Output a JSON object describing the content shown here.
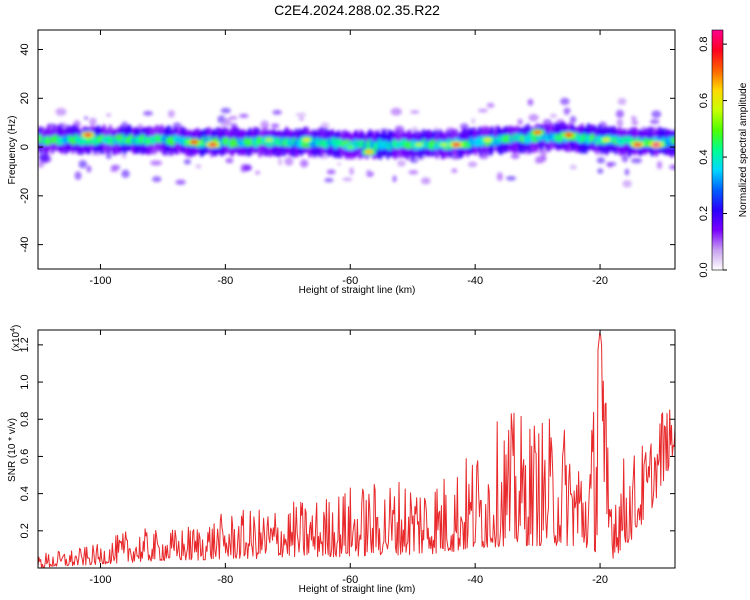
{
  "title": "C2E4.2024.288.02.35.R22",
  "chart_data": [
    {
      "type": "heatmap",
      "xlabel": "Height of straight line (km)",
      "ylabel": "Frequency (Hz)",
      "xlim": [
        -110,
        -8
      ],
      "ylim": [
        -50,
        48
      ],
      "xticks": [
        -100,
        -80,
        -60,
        -40,
        -20
      ],
      "xtick_labels": [
        "-100",
        "-80",
        "-60",
        "-40",
        "-20"
      ],
      "yticks": [
        -40,
        -20,
        0,
        20,
        40
      ],
      "ytick_labels": [
        "-40",
        "-20",
        "0",
        "20",
        "40"
      ],
      "band_center_hz": [
        [
          -110,
          3
        ],
        [
          -105,
          3
        ],
        [
          -100,
          3
        ],
        [
          -95,
          3
        ],
        [
          -90,
          3
        ],
        [
          -85,
          2
        ],
        [
          -80,
          2
        ],
        [
          -75,
          2
        ],
        [
          -70,
          2
        ],
        [
          -65,
          2
        ],
        [
          -60,
          1
        ],
        [
          -55,
          1
        ],
        [
          -50,
          1
        ],
        [
          -45,
          1
        ],
        [
          -40,
          2
        ],
        [
          -35,
          3
        ],
        [
          -30,
          4
        ],
        [
          -25,
          4
        ],
        [
          -20,
          3
        ],
        [
          -15,
          2
        ],
        [
          -10,
          2
        ],
        [
          -8,
          2
        ]
      ],
      "band_halfwidth_hz": 3,
      "peak_points": [
        {
          "x": -102,
          "y": 5,
          "amp": 0.8
        },
        {
          "x": -85,
          "y": 2,
          "amp": 0.75
        },
        {
          "x": -82,
          "y": 1,
          "amp": 0.8
        },
        {
          "x": -73,
          "y": 3,
          "amp": 0.55
        },
        {
          "x": -67,
          "y": 3,
          "amp": 0.6
        },
        {
          "x": -60,
          "y": 0,
          "amp": 0.5
        },
        {
          "x": -57,
          "y": -2,
          "amp": 0.65
        },
        {
          "x": -49,
          "y": 1,
          "amp": 0.55
        },
        {
          "x": -45,
          "y": 1,
          "amp": 0.55
        },
        {
          "x": -43,
          "y": 1,
          "amp": 0.8
        },
        {
          "x": -38,
          "y": 3,
          "amp": 0.6
        },
        {
          "x": -30,
          "y": 6,
          "amp": 0.7
        },
        {
          "x": -25,
          "y": 5,
          "amp": 0.75
        },
        {
          "x": -19,
          "y": 3,
          "amp": 0.6
        },
        {
          "x": -14,
          "y": 1,
          "amp": 0.8
        },
        {
          "x": -11,
          "y": 1,
          "amp": 0.85
        }
      ],
      "colorbar": {
        "label": "Normalized spectral amplitude",
        "range": [
          0.0,
          0.85
        ],
        "ticks": [
          0.0,
          0.2,
          0.4,
          0.6,
          0.8
        ],
        "tick_labels": [
          "0.0",
          "0.2",
          "0.4",
          "0.6",
          "0.8"
        ],
        "colors": [
          "#ffffff",
          "#c8a0f0",
          "#7a00ff",
          "#2a00ff",
          "#0060ff",
          "#00d8ff",
          "#00ff90",
          "#50ff00",
          "#c8ff00",
          "#ffd800",
          "#ff6000",
          "#ff0020",
          "#ff0090"
        ]
      }
    },
    {
      "type": "line",
      "xlabel": "Height of straight line (km)",
      "ylabel": "SNR (10 * v/v)",
      "multiplier_label": "(x10",
      "multiplier_exponent": "4",
      "multiplier_suffix": ")",
      "xlim": [
        -110,
        -8
      ],
      "ylim": [
        0,
        1.28
      ],
      "xticks": [
        -100,
        -80,
        -60,
        -40,
        -20
      ],
      "xtick_labels": [
        "-100",
        "-80",
        "-60",
        "-40",
        "-20"
      ],
      "yticks": [
        0.2,
        0.4,
        0.6,
        0.8,
        1.0,
        1.2
      ],
      "ytick_labels": [
        "0.2",
        "0.4",
        "0.6",
        "0.8",
        "1.0",
        "1.2"
      ],
      "color": "#e8282a",
      "series": [
        {
          "name": "SNR",
          "envelope_x": [
            -110,
            -105,
            -100,
            -95,
            -90,
            -85,
            -80,
            -75,
            -70,
            -65,
            -60,
            -55,
            -50,
            -45,
            -40,
            -35,
            -30,
            -25,
            -22,
            -20,
            -18,
            -15,
            -12,
            -10,
            -8
          ],
          "envelope_max": [
            0.08,
            0.1,
            0.13,
            0.22,
            0.2,
            0.24,
            0.3,
            0.32,
            0.36,
            0.38,
            0.45,
            0.47,
            0.52,
            0.52,
            0.65,
            0.85,
            0.82,
            0.8,
            0.62,
            1.28,
            0.6,
            0.62,
            0.72,
            0.9,
            0.82
          ],
          "envelope_min": [
            0.0,
            0.01,
            0.02,
            0.03,
            0.04,
            0.04,
            0.05,
            0.05,
            0.06,
            0.06,
            0.06,
            0.07,
            0.07,
            0.08,
            0.1,
            0.12,
            0.12,
            0.12,
            0.1,
            0.08,
            0.05,
            0.15,
            0.3,
            0.45,
            0.62
          ]
        }
      ]
    }
  ]
}
